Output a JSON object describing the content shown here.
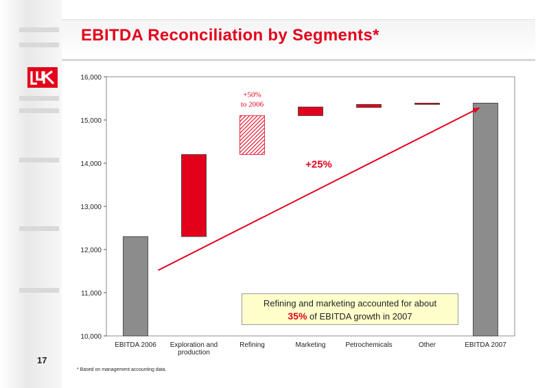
{
  "slide": {
    "title": "EBITDA Reconciliation by Segments*",
    "page_number": "17",
    "footnote": "* Based on management accounting data."
  },
  "colors": {
    "accent": "#e3001b",
    "total_bar": "#8c8c8c",
    "callout_bg": "#ffffcc"
  },
  "logo": {
    "icon": "lukoil-logo-icon"
  },
  "callout": {
    "line1": "Refining and marketing accounted for about",
    "highlight": "35%",
    "line2_rest": "of EBITDA growth in 2007"
  },
  "chart_data": {
    "type": "bar",
    "subtype": "waterfall",
    "title": "",
    "xlabel": "",
    "ylabel": "",
    "ylim": [
      10000,
      16000
    ],
    "yticks": [
      10000,
      11000,
      12000,
      13000,
      14000,
      15000,
      16000
    ],
    "ytick_labels": [
      "10,000",
      "11,000",
      "12,000",
      "13,000",
      "14,000",
      "15,000",
      "16,000"
    ],
    "grid": false,
    "categories": [
      "EBITDA 2006",
      "Exploration and production",
      "Refining",
      "Marketing",
      "Petrochemicals",
      "Other",
      "EBITDA 2007"
    ],
    "bars": [
      {
        "category": "EBITDA 2006",
        "kind": "total",
        "base": 10000,
        "top": 12300
      },
      {
        "category": "Exploration and production",
        "kind": "increase",
        "base": 12300,
        "top": 14200
      },
      {
        "category": "Refining",
        "kind": "increase-hatched",
        "base": 14200,
        "top": 15100
      },
      {
        "category": "Marketing",
        "kind": "increase",
        "base": 15100,
        "top": 15300
      },
      {
        "category": "Petrochemicals",
        "kind": "increase",
        "base": 15290,
        "top": 15360
      },
      {
        "category": "Other",
        "kind": "increase",
        "base": 15360,
        "top": 15390
      },
      {
        "category": "EBITDA 2007",
        "kind": "total",
        "base": 10000,
        "top": 15390
      }
    ],
    "annotations": [
      {
        "text": "+50%",
        "category": "Refining"
      },
      {
        "text": "to 2006",
        "category": "Refining"
      },
      {
        "text": "+25%",
        "category": "growth-arrow"
      }
    ],
    "trend_arrow": {
      "from_category": "EBITDA 2006",
      "from_value": 11520,
      "to_category": "EBITDA 2007",
      "to_value": 15280
    }
  }
}
